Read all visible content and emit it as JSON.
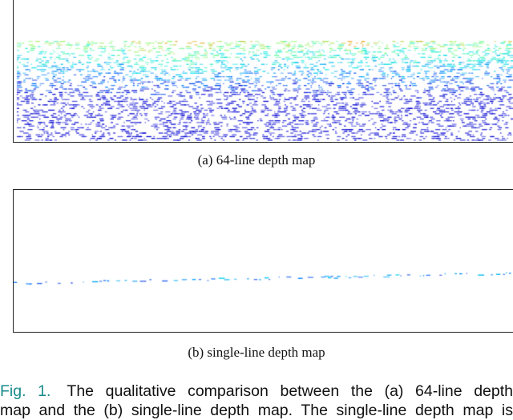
{
  "figure": {
    "panel_a": {
      "caption": "(a)  64-line depth map"
    },
    "panel_b": {
      "caption": "(b)  single-line depth map"
    },
    "caption": {
      "label": "Fig. 1.",
      "line1": "The qualitative comparison between the (a) 64-line depth",
      "line2": "map and the (b) single-line depth map. The single-line depth map is"
    },
    "colors": {
      "label": "#1a8a8a",
      "near": "#0000cc",
      "far": "#ff8c00"
    }
  }
}
